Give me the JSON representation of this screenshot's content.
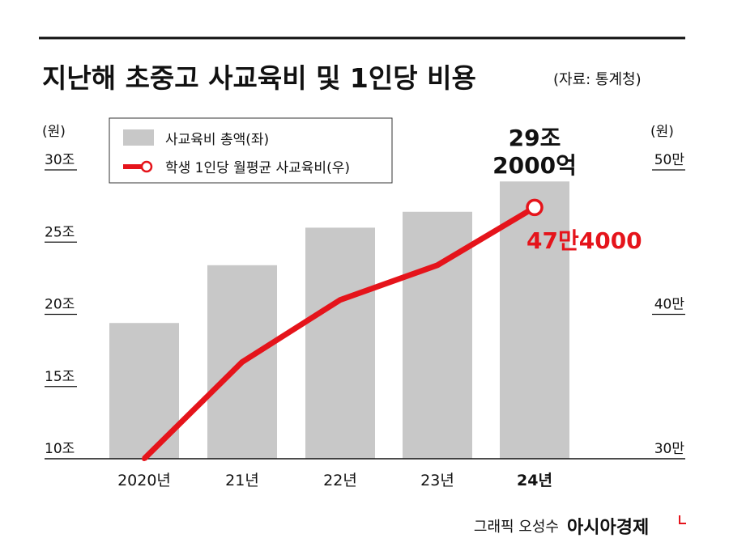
{
  "title": "지난해 초중고 사교육비 및 1인당 비용",
  "source": "(자료: 통계청)",
  "credit": "그래픽 오성수",
  "logo": "아시아경제",
  "colors": {
    "bar": "#c8c8c8",
    "line": "#e5141b",
    "text": "#111111"
  },
  "chart_data": {
    "type": "bar+line",
    "categories": [
      "2020년",
      "21년",
      "22년",
      "23년",
      "24년"
    ],
    "left_axis": {
      "unit": "(원)",
      "ylim": [
        10,
        30
      ],
      "ticks": [
        10,
        15,
        20,
        25,
        30
      ],
      "tick_labels": [
        "10조",
        "15조",
        "20조",
        "25조",
        "30조"
      ]
    },
    "right_axis": {
      "unit": "(원)",
      "ylim": [
        30,
        50
      ],
      "ticks": [
        30,
        40,
        50
      ],
      "tick_labels": [
        "30만",
        "40만",
        "50만"
      ]
    },
    "series": [
      {
        "name": "사교육비 총액(좌)",
        "type": "bar",
        "axis": "left",
        "unit": "조원",
        "values": [
          19.4,
          23.4,
          26.0,
          27.1,
          29.2
        ]
      },
      {
        "name": "학생 1인당 월평균 사교육비(우)",
        "type": "line",
        "axis": "right",
        "unit": "만원",
        "values": [
          30.0,
          36.7,
          41.0,
          43.4,
          47.4
        ]
      }
    ],
    "annotations": {
      "bar_last": [
        "29조",
        "2000억"
      ],
      "line_last": "47만4000"
    },
    "legend": "top-left",
    "grid": false
  }
}
